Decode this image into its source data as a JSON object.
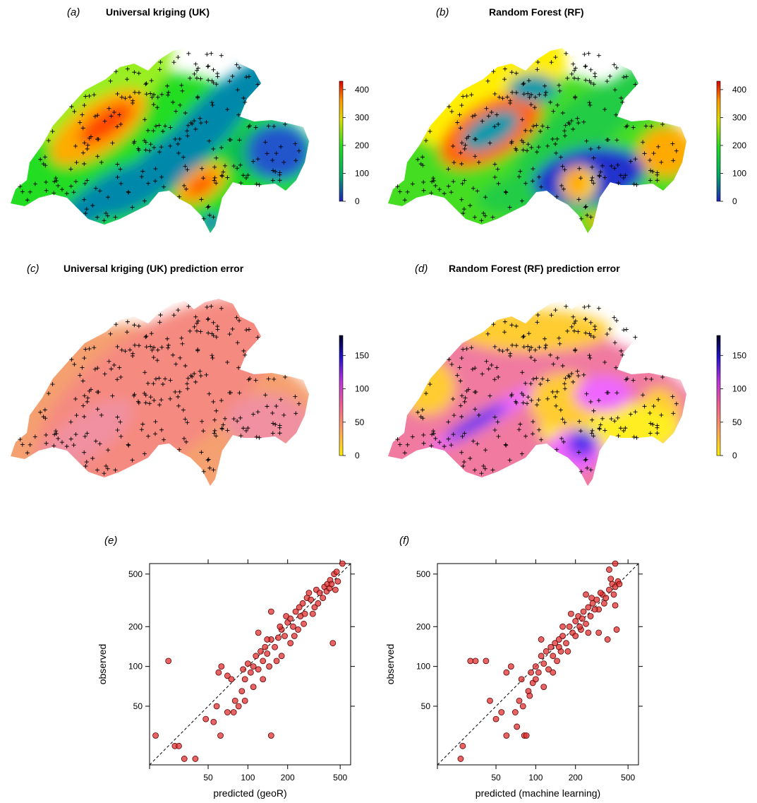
{
  "panels": [
    {
      "letter": "(a)",
      "title": "Universal kriging (UK)"
    },
    {
      "letter": "(b)",
      "title": "Random Forest (RF)"
    },
    {
      "letter": "(c)",
      "title": "Universal kriging (UK) prediction error"
    },
    {
      "letter": "(d)",
      "title": "Random Forest (RF) prediction error"
    },
    {
      "letter": "(e)",
      "title": ""
    },
    {
      "letter": "(f)",
      "title": ""
    }
  ],
  "colorbars": {
    "prediction": {
      "ticks": [
        "400",
        "300",
        "200",
        "100",
        "0"
      ],
      "range": [
        0,
        430
      ],
      "colors": [
        "#2222bb",
        "#00aa66",
        "#22dd22",
        "#dddd00",
        "#ff9900",
        "#dd0000"
      ]
    },
    "error": {
      "ticks": [
        "150",
        "100",
        "50",
        "0"
      ],
      "range": [
        0,
        180
      ],
      "colors": [
        "#ffee00",
        "#ffa060",
        "#f06090",
        "#bb33dd",
        "#2211cc",
        "#000022"
      ]
    }
  },
  "map_colors": {
    "uk_pred": [
      "#22dd22",
      "#99ee22",
      "#ffaa00",
      "#ff4400",
      "#0088aa",
      "#11bb55",
      "#2255cc"
    ],
    "rf_pred": [
      "#44dd22",
      "#ffee00",
      "#ff6600",
      "#0099aa",
      "#22cc44",
      "#2233cc",
      "#ffaa00"
    ],
    "uk_err": [
      "#f5a070",
      "#f58a80",
      "#f090a0"
    ],
    "rf_err": [
      "#f07aa0",
      "#ffcc33",
      "#ffee22",
      "#ee66ff",
      "#5533ee"
    ]
  },
  "chart_data": [
    {
      "type": "scatter",
      "xlabel": "predicted (geoR)",
      "ylabel": "observed",
      "x_scale": "log",
      "y_scale": "log",
      "xlim": [
        18,
        600
      ],
      "ylim": [
        18,
        600
      ],
      "x_ticks": [
        "50",
        "100",
        "200",
        "500"
      ],
      "y_ticks": [
        "50",
        "100",
        "200",
        "500"
      ],
      "reference_line": "1:1 dashed",
      "point_color": "#e03030",
      "points": [
        [
          20,
          30
        ],
        [
          25,
          110
        ],
        [
          28,
          25
        ],
        [
          30,
          25
        ],
        [
          33,
          20
        ],
        [
          40,
          20
        ],
        [
          48,
          40
        ],
        [
          55,
          38
        ],
        [
          60,
          90
        ],
        [
          63,
          100
        ],
        [
          62,
          30
        ],
        [
          58,
          50
        ],
        [
          70,
          45
        ],
        [
          70,
          85
        ],
        [
          75,
          80
        ],
        [
          78,
          45
        ],
        [
          80,
          55
        ],
        [
          85,
          50
        ],
        [
          90,
          65
        ],
        [
          92,
          95
        ],
        [
          95,
          80
        ],
        [
          100,
          105
        ],
        [
          105,
          90
        ],
        [
          110,
          100
        ],
        [
          115,
          120
        ],
        [
          120,
          95
        ],
        [
          125,
          130
        ],
        [
          130,
          110
        ],
        [
          135,
          140
        ],
        [
          140,
          125
        ],
        [
          145,
          100
        ],
        [
          150,
          160
        ],
        [
          160,
          140
        ],
        [
          170,
          165
        ],
        [
          180,
          190
        ],
        [
          190,
          170
        ],
        [
          200,
          215
        ],
        [
          210,
          230
        ],
        [
          220,
          200
        ],
        [
          230,
          260
        ],
        [
          240,
          190
        ],
        [
          250,
          240
        ],
        [
          260,
          300
        ],
        [
          270,
          250
        ],
        [
          280,
          330
        ],
        [
          300,
          320
        ],
        [
          320,
          280
        ],
        [
          330,
          380
        ],
        [
          350,
          360
        ],
        [
          380,
          400
        ],
        [
          400,
          420
        ],
        [
          420,
          450
        ],
        [
          450,
          500
        ],
        [
          440,
          150
        ],
        [
          460,
          380
        ],
        [
          150,
          30
        ],
        [
          150,
          260
        ],
        [
          180,
          120
        ],
        [
          210,
          150
        ],
        [
          120,
          180
        ],
        [
          95,
          55
        ],
        [
          110,
          70
        ],
        [
          130,
          80
        ],
        [
          140,
          160
        ],
        [
          165,
          110
        ],
        [
          175,
          200
        ],
        [
          195,
          240
        ],
        [
          225,
          170
        ],
        [
          245,
          280
        ],
        [
          265,
          210
        ],
        [
          290,
          360
        ],
        [
          310,
          250
        ],
        [
          340,
          300
        ],
        [
          370,
          330
        ],
        [
          395,
          370
        ],
        [
          415,
          390
        ],
        [
          430,
          420
        ],
        [
          470,
          520
        ],
        [
          520,
          600
        ],
        [
          480,
          440
        ]
      ]
    },
    {
      "type": "scatter",
      "xlabel": "predicted (machine learning)",
      "ylabel": "observed",
      "x_scale": "log",
      "y_scale": "log",
      "xlim": [
        18,
        600
      ],
      "ylim": [
        18,
        600
      ],
      "x_ticks": [
        "50",
        "100",
        "200",
        "500"
      ],
      "y_ticks": [
        "50",
        "100",
        "200",
        "500"
      ],
      "reference_line": "1:1 dashed",
      "point_color": "#e03030",
      "points": [
        [
          27,
          20
        ],
        [
          28,
          25
        ],
        [
          32,
          110
        ],
        [
          35,
          110
        ],
        [
          42,
          110
        ],
        [
          45,
          55
        ],
        [
          50,
          40
        ],
        [
          55,
          45
        ],
        [
          60,
          90
        ],
        [
          65,
          100
        ],
        [
          60,
          30
        ],
        [
          70,
          45
        ],
        [
          72,
          35
        ],
        [
          75,
          55
        ],
        [
          78,
          80
        ],
        [
          80,
          50
        ],
        [
          82,
          30
        ],
        [
          85,
          30
        ],
        [
          88,
          65
        ],
        [
          92,
          90
        ],
        [
          95,
          75
        ],
        [
          100,
          100
        ],
        [
          105,
          90
        ],
        [
          110,
          120
        ],
        [
          115,
          105
        ],
        [
          120,
          130
        ],
        [
          125,
          95
        ],
        [
          130,
          140
        ],
        [
          135,
          120
        ],
        [
          140,
          150
        ],
        [
          145,
          110
        ],
        [
          150,
          160
        ],
        [
          155,
          130
        ],
        [
          160,
          170
        ],
        [
          170,
          150
        ],
        [
          180,
          200
        ],
        [
          190,
          180
        ],
        [
          200,
          220
        ],
        [
          210,
          240
        ],
        [
          220,
          190
        ],
        [
          230,
          260
        ],
        [
          240,
          210
        ],
        [
          250,
          280
        ],
        [
          260,
          240
        ],
        [
          270,
          300
        ],
        [
          290,
          320
        ],
        [
          300,
          270
        ],
        [
          320,
          350
        ],
        [
          340,
          330
        ],
        [
          360,
          380
        ],
        [
          380,
          420
        ],
        [
          400,
          400
        ],
        [
          410,
          190
        ],
        [
          400,
          290
        ],
        [
          350,
          160
        ],
        [
          300,
          180
        ],
        [
          420,
          440
        ],
        [
          390,
          350
        ],
        [
          250,
          180
        ],
        [
          200,
          170
        ],
        [
          160,
          200
        ],
        [
          135,
          90
        ],
        [
          115,
          70
        ],
        [
          100,
          80
        ],
        [
          90,
          60
        ],
        [
          175,
          130
        ],
        [
          225,
          230
        ],
        [
          265,
          330
        ],
        [
          310,
          360
        ],
        [
          330,
          300
        ],
        [
          370,
          460
        ],
        [
          430,
          420
        ],
        [
          360,
          540
        ],
        [
          400,
          600
        ],
        [
          110,
          160
        ],
        [
          150,
          140
        ],
        [
          185,
          250
        ],
        [
          215,
          200
        ],
        [
          280,
          270
        ],
        [
          240,
          350
        ]
      ]
    }
  ]
}
